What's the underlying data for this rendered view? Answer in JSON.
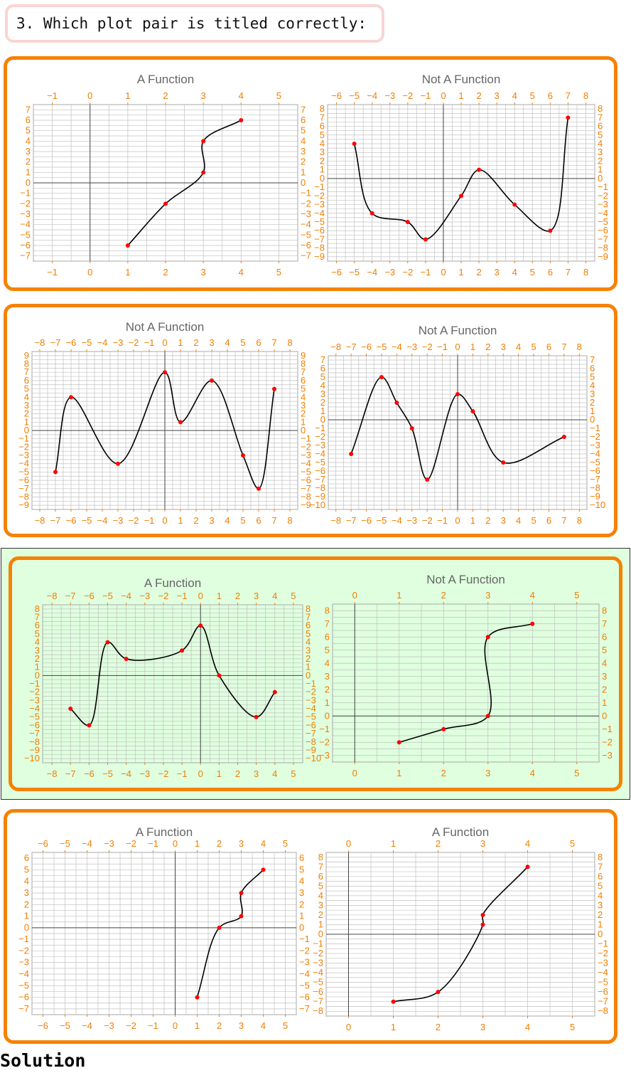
{
  "question": {
    "text": "3. Which plot pair is titled correctly:"
  },
  "solution_label": "Solution",
  "colors": {
    "frame": "#f58200",
    "selected_bg": "#dfffdf",
    "tick_labels": "#f07e00",
    "curve": "#000000",
    "points": "#ff0000",
    "title": "#666666",
    "grid": "#bbbbbb",
    "question_border": "#fad4d4"
  },
  "pairs": [
    {
      "selected": false,
      "plots": [
        {
          "title": "A Function",
          "xlim": [
            -1,
            5
          ],
          "ylim": [
            -7,
            7
          ],
          "xticks": [
            -1,
            0,
            1,
            2,
            3,
            4,
            5
          ],
          "yticks": [
            -7,
            -6,
            -5,
            -4,
            -3,
            -2,
            -1,
            0,
            1,
            2,
            3,
            4,
            5,
            6,
            7
          ],
          "points": [
            [
              1,
              -6
            ],
            [
              2,
              -2
            ],
            [
              3,
              1
            ],
            [
              3,
              4
            ],
            [
              4,
              6
            ]
          ]
        },
        {
          "title": "Not A Function",
          "xlim": [
            -6,
            8
          ],
          "ylim": [
            -9,
            8
          ],
          "xticks": [
            -6,
            -5,
            -4,
            -3,
            -2,
            -1,
            0,
            1,
            2,
            3,
            4,
            5,
            6,
            7,
            8
          ],
          "yticks": [
            -9,
            -8,
            -7,
            -6,
            -5,
            -4,
            -3,
            -2,
            -1,
            0,
            1,
            2,
            3,
            4,
            5,
            6,
            7,
            8
          ],
          "points": [
            [
              -5,
              4
            ],
            [
              -4,
              -4
            ],
            [
              -2,
              -5
            ],
            [
              -1,
              -7
            ],
            [
              1,
              -2
            ],
            [
              2,
              1
            ],
            [
              4,
              -3
            ],
            [
              6,
              -6
            ],
            [
              7,
              7
            ]
          ]
        }
      ]
    },
    {
      "selected": false,
      "plots": [
        {
          "title": "Not A Function",
          "xlim": [
            -8,
            8
          ],
          "ylim": [
            -9,
            9
          ],
          "xticks": [
            -8,
            -7,
            -6,
            -5,
            -4,
            -3,
            -2,
            -1,
            0,
            1,
            2,
            3,
            4,
            5,
            6,
            7,
            8
          ],
          "yticks": [
            -9,
            -8,
            -7,
            -6,
            -5,
            -4,
            -3,
            -2,
            -1,
            0,
            1,
            2,
            3,
            4,
            5,
            6,
            7,
            8,
            9
          ],
          "points": [
            [
              -7,
              -5
            ],
            [
              -6,
              4
            ],
            [
              -3,
              -4
            ],
            [
              0,
              7
            ],
            [
              1,
              1
            ],
            [
              3,
              6
            ],
            [
              5,
              -3
            ],
            [
              6,
              -7
            ],
            [
              7,
              5
            ]
          ]
        },
        {
          "title": "Not A Function",
          "xlim": [
            -8,
            8
          ],
          "ylim": [
            -10,
            7
          ],
          "xticks": [
            -8,
            -7,
            -6,
            -5,
            -4,
            -3,
            -2,
            -1,
            0,
            1,
            2,
            3,
            4,
            5,
            6,
            7,
            8
          ],
          "yticks": [
            -10,
            -9,
            -8,
            -7,
            -6,
            -5,
            -4,
            -3,
            -2,
            -1,
            0,
            1,
            2,
            3,
            4,
            5,
            6,
            7
          ],
          "points": [
            [
              -7,
              -4
            ],
            [
              -5,
              5
            ],
            [
              -4,
              2
            ],
            [
              -3,
              -1
            ],
            [
              -2,
              -7
            ],
            [
              0,
              3
            ],
            [
              1,
              1
            ],
            [
              3,
              -5
            ],
            [
              7,
              -2
            ]
          ]
        }
      ]
    },
    {
      "selected": true,
      "plots": [
        {
          "title": "A Function",
          "xlim": [
            -8,
            5
          ],
          "ylim": [
            -10,
            8
          ],
          "xticks": [
            -8,
            -7,
            -6,
            -5,
            -4,
            -3,
            -2,
            -1,
            0,
            1,
            2,
            3,
            4,
            5
          ],
          "yticks": [
            -10,
            -9,
            -8,
            -7,
            -6,
            -5,
            -4,
            -3,
            -2,
            -1,
            0,
            1,
            2,
            3,
            4,
            5,
            6,
            7,
            8
          ],
          "points": [
            [
              -7,
              -4
            ],
            [
              -6,
              -6
            ],
            [
              -5,
              4
            ],
            [
              -4,
              2
            ],
            [
              -1,
              3
            ],
            [
              0,
              6
            ],
            [
              1,
              0
            ],
            [
              3,
              -5
            ],
            [
              4,
              -2
            ]
          ]
        },
        {
          "title": "Not A Function",
          "xlim": [
            0,
            5
          ],
          "ylim": [
            -3,
            8
          ],
          "xticks": [
            0,
            1,
            2,
            3,
            4,
            5
          ],
          "yticks": [
            -3,
            -2,
            -1,
            0,
            1,
            2,
            3,
            4,
            5,
            6,
            7,
            8
          ],
          "points": [
            [
              1,
              -2
            ],
            [
              2,
              -1
            ],
            [
              3,
              0
            ],
            [
              3,
              6
            ],
            [
              4,
              7
            ]
          ]
        }
      ]
    },
    {
      "selected": false,
      "plots": [
        {
          "title": "A Function",
          "xlim": [
            -6,
            5
          ],
          "ylim": [
            -7,
            6
          ],
          "xticks": [
            -6,
            -5,
            -4,
            -3,
            -2,
            -1,
            0,
            1,
            2,
            3,
            4,
            5
          ],
          "yticks": [
            -7,
            -6,
            -5,
            -4,
            -3,
            -2,
            -1,
            0,
            1,
            2,
            3,
            4,
            5,
            6
          ],
          "points": [
            [
              1,
              -6
            ],
            [
              2,
              0
            ],
            [
              3,
              1
            ],
            [
              3,
              3
            ],
            [
              4,
              5
            ]
          ]
        },
        {
          "title": "A Function",
          "xlim": [
            0,
            5
          ],
          "ylim": [
            -8,
            8
          ],
          "xticks": [
            0,
            1,
            2,
            3,
            4,
            5
          ],
          "yticks": [
            -8,
            -7,
            -6,
            -5,
            -4,
            -3,
            -2,
            -1,
            0,
            1,
            2,
            3,
            4,
            5,
            6,
            7,
            8
          ],
          "points": [
            [
              1,
              -7
            ],
            [
              2,
              -6
            ],
            [
              3,
              1
            ],
            [
              3,
              2
            ],
            [
              4,
              7
            ]
          ]
        }
      ]
    }
  ],
  "chart_data": [
    {
      "type": "line",
      "title": "A Function",
      "x": [
        1,
        2,
        3,
        3,
        4
      ],
      "y": [
        -6,
        -2,
        1,
        4,
        6
      ],
      "xlim": [
        -1,
        5
      ],
      "ylim": [
        -7,
        7
      ],
      "grid": true
    },
    {
      "type": "line",
      "title": "Not A Function",
      "x": [
        -5,
        -4,
        -2,
        -1,
        1,
        2,
        4,
        6,
        7
      ],
      "y": [
        4,
        -4,
        -5,
        -7,
        -2,
        1,
        -3,
        -6,
        7
      ],
      "xlim": [
        -6,
        8
      ],
      "ylim": [
        -9,
        8
      ],
      "grid": true
    },
    {
      "type": "line",
      "title": "Not A Function",
      "x": [
        -7,
        -6,
        -3,
        0,
        1,
        3,
        5,
        6,
        7
      ],
      "y": [
        -5,
        4,
        -4,
        7,
        1,
        6,
        -3,
        -7,
        5
      ],
      "xlim": [
        -8,
        8
      ],
      "ylim": [
        -9,
        9
      ],
      "grid": true
    },
    {
      "type": "line",
      "title": "Not A Function",
      "x": [
        -7,
        -5,
        -4,
        -3,
        -2,
        0,
        1,
        3,
        7
      ],
      "y": [
        -4,
        5,
        2,
        -1,
        -7,
        3,
        1,
        -5,
        -2
      ],
      "xlim": [
        -8,
        8
      ],
      "ylim": [
        -10,
        7
      ],
      "grid": true
    },
    {
      "type": "line",
      "title": "A Function",
      "x": [
        -7,
        -6,
        -5,
        -4,
        -1,
        0,
        1,
        3,
        4
      ],
      "y": [
        -4,
        -6,
        4,
        2,
        3,
        6,
        0,
        -5,
        -2
      ],
      "xlim": [
        -8,
        5
      ],
      "ylim": [
        -10,
        8
      ],
      "grid": true
    },
    {
      "type": "line",
      "title": "Not A Function",
      "x": [
        1,
        2,
        3,
        3,
        4
      ],
      "y": [
        -2,
        -1,
        0,
        6,
        7
      ],
      "xlim": [
        0,
        5
      ],
      "ylim": [
        -3,
        8
      ],
      "grid": true
    },
    {
      "type": "line",
      "title": "A Function",
      "x": [
        1,
        2,
        3,
        3,
        4
      ],
      "y": [
        -6,
        0,
        1,
        3,
        5
      ],
      "xlim": [
        -6,
        5
      ],
      "ylim": [
        -7,
        6
      ],
      "grid": true
    },
    {
      "type": "line",
      "title": "A Function",
      "x": [
        1,
        2,
        3,
        3,
        4
      ],
      "y": [
        -7,
        -6,
        1,
        2,
        7
      ],
      "xlim": [
        0,
        5
      ],
      "ylim": [
        -8,
        8
      ],
      "grid": true
    }
  ]
}
